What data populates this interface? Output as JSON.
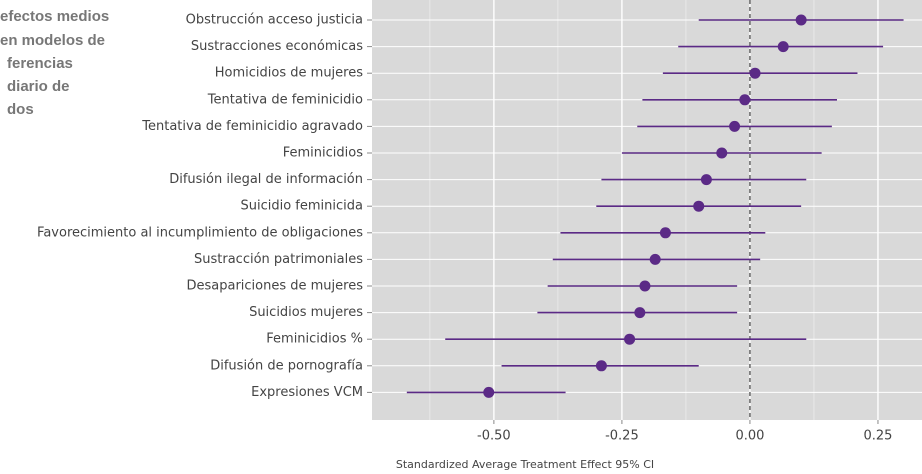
{
  "chart_data": {
    "type": "forest",
    "title": [
      "efectos medios",
      "en modelos de",
      "ferencias",
      "diario de",
      "dos"
    ],
    "xlabel": "Standardized Average Treatment Effect 95% CI",
    "categories": [
      "Obstrucción acceso justicia",
      "Sustracciones económicas",
      "Homicidios de mujeres",
      "Tentativa de feminicidio",
      "Tentativa de feminicidio agravado",
      "Feminicidios",
      "Difusión ilegal de información",
      "Suicidio feminicida",
      "Favorecimiento al incumplimiento de obligaciones",
      "Sustracción patrimoniales",
      "Desapariciones de mujeres",
      "Suicidios mujeres",
      "Feminicidios %",
      "Difusión de pornografía",
      "Expresiones VCM"
    ],
    "series": [
      {
        "color": "#5b2a86",
        "values": [
          0.1,
          0.065,
          0.01,
          -0.01,
          -0.03,
          -0.055,
          -0.085,
          -0.1,
          -0.165,
          -0.185,
          -0.205,
          -0.215,
          -0.235,
          -0.29,
          -0.51
        ],
        "lower": [
          -0.1,
          -0.14,
          -0.17,
          -0.21,
          -0.22,
          -0.25,
          -0.29,
          -0.3,
          -0.37,
          -0.385,
          -0.395,
          -0.415,
          -0.595,
          -0.485,
          -0.67
        ],
        "upper": [
          0.3,
          0.26,
          0.21,
          0.17,
          0.16,
          0.14,
          0.11,
          0.1,
          0.03,
          0.02,
          -0.025,
          -0.025,
          0.11,
          -0.1,
          -0.36
        ]
      }
    ],
    "xlim": [
      -0.738,
      0.336
    ],
    "xticks": [
      {
        "value": -0.5,
        "label": "-0.50"
      },
      {
        "value": -0.25,
        "label": "-0.25"
      },
      {
        "value": 0,
        "label": "0.00"
      },
      {
        "value": 0.25,
        "label": "0.25"
      }
    ],
    "xticks_minor": [
      -0.625,
      -0.375,
      -0.125,
      0.125
    ],
    "reference_line": 0,
    "grid": true
  }
}
